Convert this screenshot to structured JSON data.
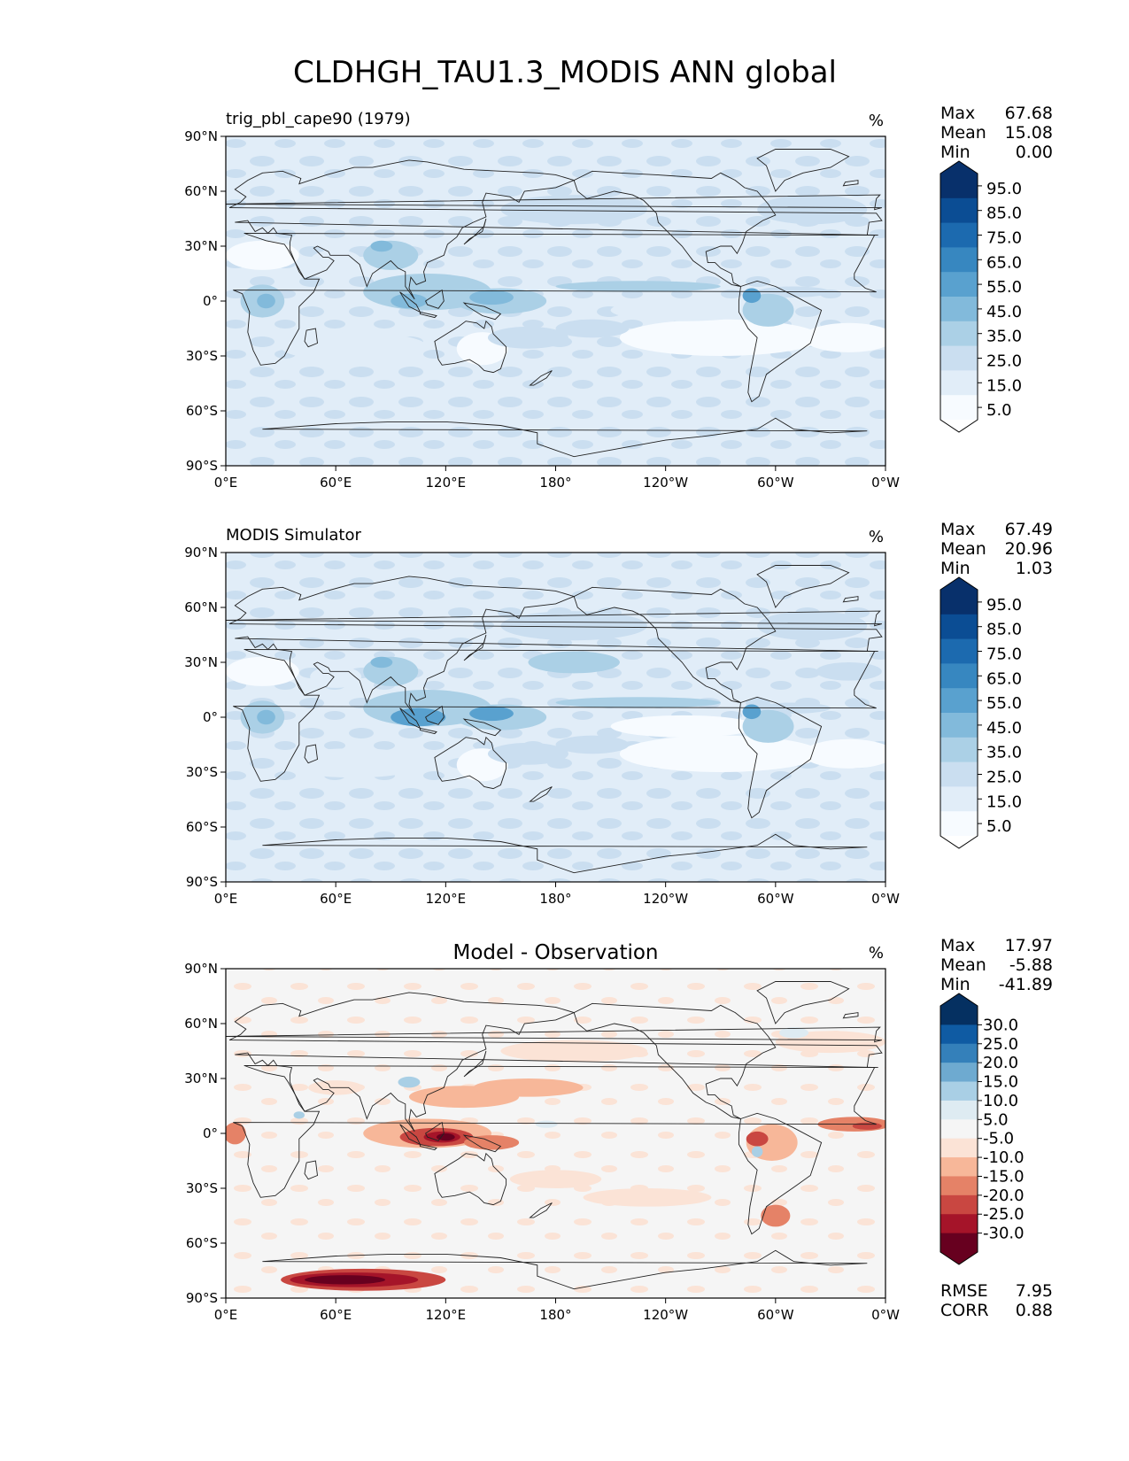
{
  "figure_title": "CLDHGH_TAU1.3_MODIS ANN global",
  "lat_ticks": [
    "90°N",
    "60°N",
    "30°N",
    "0°",
    "30°S",
    "60°S",
    "90°S"
  ],
  "lon_ticks": [
    "0°E",
    "60°E",
    "120°E",
    "180°",
    "120°W",
    "60°W",
    "0°W"
  ],
  "stat_labels": {
    "max": "Max",
    "mean": "Mean",
    "min": "Min",
    "rmse": "RMSE",
    "corr": "CORR"
  },
  "colors": {
    "blues": [
      "#f7fbff",
      "#e1edf8",
      "#cadef0",
      "#abd0e6",
      "#82badb",
      "#59a1cf",
      "#3787c0",
      "#1c6aaf",
      "#0b4d94",
      "#08306b"
    ],
    "div_neg": [
      "#fbe3d6",
      "#f7b799",
      "#e58267",
      "#c94741",
      "#a51429",
      "#67001f"
    ],
    "div_pos": [
      "#deebf2",
      "#a9cfe5",
      "#6eaad0",
      "#3480ba",
      "#0f5ba3",
      "#053061"
    ],
    "neutral": "#f5f5f5"
  },
  "chart_data": [
    {
      "type": "heatmap",
      "title": "trig_pbl_cape90 (1979)",
      "units": "%",
      "stats": {
        "max": "67.68",
        "mean": "15.08",
        "min": "0.00"
      },
      "xlim": [
        0,
        360
      ],
      "ylim": [
        -90,
        90
      ],
      "colorbar": {
        "levels": [
          5,
          15,
          25,
          35,
          45,
          55,
          65,
          75,
          85,
          95
        ],
        "tick_labels": [
          "95.0",
          "85.0",
          "75.0",
          "65.0",
          "55.0",
          "45.0",
          "35.0",
          "25.0",
          "15.0",
          "5.0"
        ],
        "extend": "both"
      }
    },
    {
      "type": "heatmap",
      "title": "MODIS Simulator",
      "units": "%",
      "stats": {
        "max": "67.49",
        "mean": "20.96",
        "min": "1.03"
      },
      "xlim": [
        0,
        360
      ],
      "ylim": [
        -90,
        90
      ],
      "colorbar": {
        "levels": [
          5,
          15,
          25,
          35,
          45,
          55,
          65,
          75,
          85,
          95
        ],
        "tick_labels": [
          "95.0",
          "85.0",
          "75.0",
          "65.0",
          "55.0",
          "45.0",
          "35.0",
          "25.0",
          "15.0",
          "5.0"
        ],
        "extend": "both"
      }
    },
    {
      "type": "heatmap",
      "title": "Model - Observation",
      "units": "%",
      "stats": {
        "max": "17.97",
        "mean": "-5.88",
        "min": "-41.89",
        "rmse": "7.95",
        "corr": "0.88"
      },
      "xlim": [
        0,
        360
      ],
      "ylim": [
        -90,
        90
      ],
      "colorbar": {
        "levels": [
          -30,
          -25,
          -20,
          -15,
          -10,
          -5,
          5,
          10,
          15,
          20,
          25,
          30
        ],
        "tick_labels": [
          "30.0",
          "25.0",
          "20.0",
          "15.0",
          "10.0",
          "5.0",
          "-5.0",
          "-10.0",
          "-15.0",
          "-20.0",
          "-25.0",
          "-30.0"
        ],
        "extend": "both"
      }
    }
  ]
}
